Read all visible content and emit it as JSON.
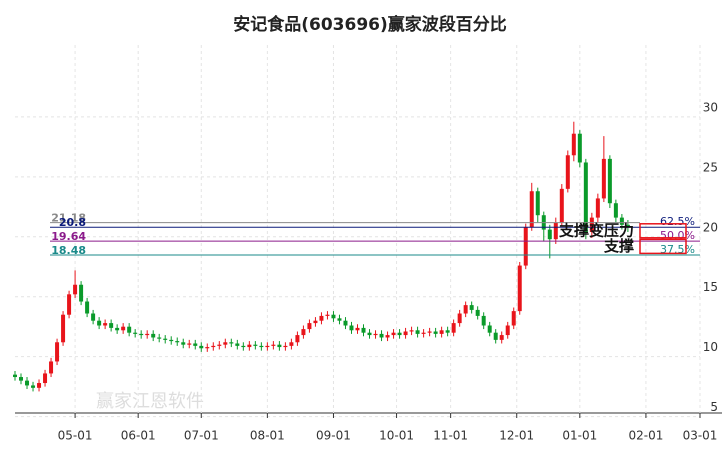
{
  "chart_data": {
    "type": "candlestick",
    "title": "安记食品(603696)赢家波段百分比",
    "xlim": [
      0,
      228
    ],
    "xticks": [
      {
        "value": 20,
        "label": "05-01"
      },
      {
        "value": 41,
        "label": "06-01"
      },
      {
        "value": 62,
        "label": "07-01"
      },
      {
        "value": 84,
        "label": "08-01"
      },
      {
        "value": 106,
        "label": "09-01"
      },
      {
        "value": 127,
        "label": "10-01"
      },
      {
        "value": 145,
        "label": "11-01"
      },
      {
        "value": 167,
        "label": "12-01"
      },
      {
        "value": 188,
        "label": "01-01"
      },
      {
        "value": 210,
        "label": "02-01"
      },
      {
        "value": 228,
        "label": "03-01"
      }
    ],
    "ylim": [
      5.3,
      36
    ],
    "yticks": [
      5,
      10,
      15,
      20,
      25,
      30
    ],
    "grid": true,
    "up_color": "#e8141b",
    "down_color": "#0a9a2a",
    "x": [
      0,
      2,
      4,
      6,
      8,
      10,
      12,
      14,
      16,
      18,
      20,
      22,
      24,
      26,
      28,
      30,
      32,
      34,
      36,
      38,
      40,
      42,
      44,
      46,
      48,
      50,
      52,
      54,
      56,
      58,
      60,
      62,
      64,
      66,
      68,
      70,
      72,
      74,
      76,
      78,
      80,
      82,
      84,
      86,
      88,
      90,
      92,
      94,
      96,
      98,
      100,
      102,
      104,
      106,
      108,
      110,
      112,
      114,
      116,
      118,
      120,
      122,
      124,
      126,
      128,
      130,
      132,
      134,
      136,
      138,
      140,
      142,
      144,
      146,
      148,
      150,
      152,
      154,
      156,
      158,
      160,
      162,
      164,
      166,
      168,
      170,
      172,
      174,
      176,
      178,
      180,
      182,
      184,
      186,
      188,
      190,
      192,
      194,
      196,
      198,
      200,
      202,
      204
    ],
    "open": [
      8.5,
      8.3,
      8.0,
      7.6,
      7.4,
      7.8,
      8.6,
      9.6,
      11.2,
      13.5,
      15.2,
      16.0,
      14.6,
      13.6,
      13.0,
      12.6,
      12.8,
      12.4,
      12.2,
      12.5,
      12.0,
      11.9,
      11.8,
      11.9,
      11.6,
      11.5,
      11.4,
      11.3,
      11.2,
      11.0,
      11.1,
      10.9,
      10.7,
      10.8,
      10.9,
      11.0,
      11.2,
      11.1,
      10.9,
      10.8,
      11.0,
      10.9,
      10.8,
      10.9,
      11.0,
      10.8,
      10.9,
      11.2,
      11.8,
      12.3,
      12.8,
      13.0,
      13.4,
      13.5,
      13.2,
      13.0,
      12.6,
      12.2,
      12.4,
      12.0,
      11.8,
      11.9,
      11.6,
      11.8,
      12.0,
      11.8,
      12.1,
      12.2,
      11.9,
      12.0,
      12.1,
      11.9,
      12.2,
      12.0,
      12.8,
      13.6,
      14.3,
      13.9,
      13.4,
      12.6,
      12.0,
      11.4,
      11.8,
      12.6,
      13.8,
      17.6,
      20.8,
      23.8,
      21.8,
      20.6,
      19.8,
      21.2,
      24.0,
      26.8,
      28.6,
      26.2,
      20.4,
      21.6,
      23.2,
      26.5,
      22.8,
      21.6,
      21.0
    ],
    "high": [
      8.8,
      8.6,
      8.3,
      7.9,
      8.1,
      8.9,
      9.9,
      11.5,
      13.8,
      15.5,
      17.2,
      16.3,
      14.9,
      13.9,
      13.3,
      13.1,
      13.1,
      12.7,
      12.8,
      12.8,
      12.3,
      12.2,
      12.2,
      12.2,
      11.9,
      11.8,
      11.7,
      11.6,
      11.5,
      11.4,
      11.4,
      11.2,
      11.1,
      11.2,
      11.3,
      11.5,
      11.5,
      11.4,
      11.2,
      11.3,
      11.3,
      11.2,
      11.2,
      11.3,
      11.3,
      11.2,
      11.5,
      12.1,
      12.6,
      13.1,
      13.3,
      13.7,
      13.8,
      13.8,
      13.5,
      13.3,
      12.9,
      12.7,
      12.7,
      12.3,
      12.2,
      12.2,
      12.1,
      12.3,
      12.3,
      12.4,
      12.5,
      12.5,
      12.3,
      12.4,
      12.4,
      12.5,
      12.5,
      13.1,
      13.9,
      14.6,
      14.6,
      14.2,
      13.7,
      12.9,
      12.3,
      12.1,
      12.9,
      14.1,
      17.9,
      21.1,
      24.5,
      24.1,
      22.1,
      21.0,
      21.6,
      24.4,
      27.2,
      29.6,
      28.9,
      26.5,
      22.0,
      23.6,
      28.4,
      26.8,
      23.1,
      21.9,
      21.4
    ],
    "low": [
      8.0,
      7.7,
      7.3,
      7.1,
      7.1,
      7.5,
      8.3,
      9.3,
      10.9,
      13.2,
      14.9,
      14.3,
      13.3,
      12.7,
      12.3,
      12.3,
      12.1,
      11.9,
      11.9,
      11.7,
      11.6,
      11.5,
      11.5,
      11.3,
      11.2,
      11.1,
      11.0,
      10.9,
      10.7,
      10.7,
      10.6,
      10.4,
      10.4,
      10.5,
      10.6,
      10.7,
      10.8,
      10.6,
      10.5,
      10.5,
      10.6,
      10.5,
      10.5,
      10.6,
      10.5,
      10.5,
      10.6,
      10.9,
      11.5,
      12.0,
      12.5,
      12.7,
      13.1,
      12.9,
      12.7,
      12.3,
      11.9,
      11.9,
      11.7,
      11.5,
      11.5,
      11.3,
      11.3,
      11.5,
      11.5,
      11.5,
      11.8,
      11.6,
      11.6,
      11.7,
      11.6,
      11.6,
      11.7,
      11.7,
      12.5,
      13.3,
      13.6,
      13.1,
      12.3,
      11.7,
      11.1,
      11.1,
      11.5,
      12.3,
      13.5,
      17.3,
      20.5,
      21.2,
      19.6,
      18.2,
      19.4,
      20.9,
      23.7,
      26.3,
      25.8,
      19.8,
      19.9,
      21.2,
      22.9,
      22.4,
      21.2,
      20.6,
      20.4
    ],
    "close": [
      8.3,
      8.0,
      7.6,
      7.4,
      7.8,
      8.6,
      9.6,
      11.2,
      13.5,
      15.2,
      16.0,
      14.6,
      13.6,
      13.0,
      12.6,
      12.8,
      12.4,
      12.2,
      12.5,
      12.0,
      11.9,
      11.8,
      11.9,
      11.6,
      11.5,
      11.4,
      11.3,
      11.2,
      11.0,
      11.1,
      10.9,
      10.7,
      10.8,
      10.9,
      11.0,
      11.2,
      11.1,
      10.9,
      10.8,
      11.0,
      10.9,
      10.8,
      10.9,
      11.0,
      10.8,
      10.9,
      11.2,
      11.8,
      12.3,
      12.8,
      13.0,
      13.4,
      13.5,
      13.2,
      13.0,
      12.6,
      12.2,
      12.4,
      12.0,
      11.8,
      11.9,
      11.6,
      11.8,
      12.0,
      11.8,
      12.1,
      12.2,
      11.9,
      12.0,
      12.1,
      11.9,
      12.2,
      12.0,
      12.8,
      13.6,
      14.3,
      13.9,
      13.4,
      12.6,
      12.0,
      11.4,
      11.8,
      12.6,
      13.8,
      17.6,
      20.8,
      23.8,
      21.8,
      20.6,
      19.8,
      21.2,
      24.0,
      26.8,
      28.6,
      26.2,
      20.4,
      21.6,
      23.2,
      26.5,
      22.8,
      21.6,
      21.0,
      20.8
    ],
    "levels": [
      {
        "value": 21.18,
        "color": "#8a8a8a"
      },
      {
        "value": 20.8,
        "color": "#0b1a7a",
        "ratio": "62.5%"
      },
      {
        "value": 19.64,
        "color": "#8b1a8b",
        "ratio": "50.0%"
      },
      {
        "value": 18.48,
        "color": "#1a8a8a",
        "ratio": "37.5%"
      }
    ],
    "annotations": [
      {
        "text": "支撑变压力",
        "value": 20.5
      },
      {
        "text": "支撑",
        "value": 19.2
      }
    ],
    "watermark": "赢家江恩软件"
  }
}
